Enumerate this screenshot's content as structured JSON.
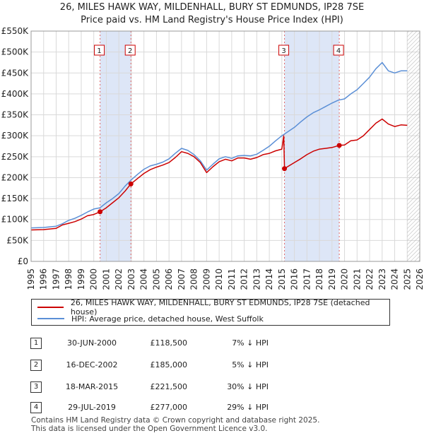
{
  "title": "26, MILES HAWK WAY, MILDENHALL, BURY ST EDMUNDS, IP28 7SE",
  "subtitle": "Price paid vs. HM Land Registry's House Price Index (HPI)",
  "colors": {
    "property": "#cc0000",
    "hpi": "#5b8fd6",
    "shade": "#dde6f7",
    "grid": "#d9d9d9",
    "marker_line": "#e06666"
  },
  "legend": {
    "property": "26, MILES HAWK WAY, MILDENHALL, BURY ST EDMUNDS, IP28 7SE (detached house)",
    "hpi": "HPI: Average price, detached house, West Suffolk"
  },
  "sales": [
    {
      "n": "1",
      "date": "30-JUN-2000",
      "price": "£118,500",
      "hpi": "7% ↓ HPI"
    },
    {
      "n": "2",
      "date": "16-DEC-2002",
      "price": "£185,000",
      "hpi": "5% ↓ HPI"
    },
    {
      "n": "3",
      "date": "18-MAR-2015",
      "price": "£221,500",
      "hpi": "30% ↓ HPI"
    },
    {
      "n": "4",
      "date": "29-JUL-2019",
      "price": "£277,000",
      "hpi": "29% ↓ HPI"
    }
  ],
  "footer": [
    "Contains HM Land Registry data © Crown copyright and database right 2025.",
    "This data is licensed under the Open Government Licence v3.0."
  ],
  "chart_data": {
    "type": "line",
    "title": "26, MILES HAWK WAY, MILDENHALL, BURY ST EDMUNDS, IP28 7SE",
    "subtitle": "Price paid vs. HM Land Registry's House Price Index (HPI)",
    "xlabel": "",
    "ylabel": "",
    "xlim": [
      1995,
      2026
    ],
    "ylim": [
      0,
      550000
    ],
    "xticks": [
      1995,
      1996,
      1997,
      1998,
      1999,
      2000,
      2001,
      2002,
      2003,
      2004,
      2005,
      2006,
      2007,
      2008,
      2009,
      2010,
      2011,
      2012,
      2013,
      2014,
      2015,
      2016,
      2017,
      2018,
      2019,
      2020,
      2021,
      2022,
      2023,
      2024,
      2025,
      2026
    ],
    "yticks": [
      {
        "v": 0,
        "label": "£0"
      },
      {
        "v": 50000,
        "label": "£50K"
      },
      {
        "v": 100000,
        "label": "£100K"
      },
      {
        "v": 150000,
        "label": "£150K"
      },
      {
        "v": 200000,
        "label": "£200K"
      },
      {
        "v": 250000,
        "label": "£250K"
      },
      {
        "v": 300000,
        "label": "£300K"
      },
      {
        "v": 350000,
        "label": "£350K"
      },
      {
        "v": 400000,
        "label": "£400K"
      },
      {
        "v": 450000,
        "label": "£450K"
      },
      {
        "v": 500000,
        "label": "£500K"
      },
      {
        "v": 550000,
        "label": "£550K"
      }
    ],
    "grid": true,
    "legend_position": "below-chart",
    "shaded_periods": [
      [
        2000.5,
        2002.96
      ],
      [
        2015.21,
        2019.58
      ]
    ],
    "hatched_from": 2025.0,
    "series": [
      {
        "name": "26, MILES HAWK WAY, MILDENHALL, BURY ST EDMUNDS, IP28 7SE (detached house)",
        "color": "#cc0000",
        "x": [
          1995.0,
          1996.0,
          1997.0,
          1997.5,
          1998.0,
          1998.5,
          1999.0,
          1999.5,
          2000.0,
          2000.5,
          2001.0,
          2001.5,
          2002.0,
          2002.5,
          2002.96,
          2003.5,
          2004.0,
          2004.5,
          2005.0,
          2005.5,
          2006.0,
          2006.5,
          2007.0,
          2007.5,
          2008.0,
          2008.5,
          2009.0,
          2009.5,
          2010.0,
          2010.5,
          2011.0,
          2011.5,
          2012.0,
          2012.5,
          2013.0,
          2013.5,
          2014.0,
          2014.5,
          2015.0,
          2015.15,
          2015.21,
          2015.5,
          2016.0,
          2016.5,
          2017.0,
          2017.5,
          2018.0,
          2018.5,
          2019.0,
          2019.58,
          2020.0,
          2020.5,
          2021.0,
          2021.5,
          2022.0,
          2022.5,
          2023.0,
          2023.5,
          2024.0,
          2024.5,
          2025.0
        ],
        "y": [
          75000,
          76000,
          79000,
          87000,
          91000,
          95000,
          101000,
          109000,
          112000,
          118500,
          128000,
          140000,
          152000,
          168000,
          185000,
          198000,
          210000,
          219000,
          225000,
          230000,
          236000,
          248000,
          262000,
          258000,
          250000,
          236000,
          212000,
          226000,
          238000,
          244000,
          240000,
          247000,
          247000,
          244000,
          248000,
          255000,
          258000,
          264000,
          268000,
          300000,
          221500,
          227000,
          236000,
          245000,
          255000,
          263000,
          268000,
          270000,
          272000,
          277000,
          278000,
          288000,
          290000,
          300000,
          315000,
          330000,
          340000,
          328000,
          322000,
          326000,
          325000
        ]
      },
      {
        "name": "HPI: Average price, detached house, West Suffolk",
        "color": "#5b8fd6",
        "x": [
          1995.0,
          1996.0,
          1997.0,
          1997.5,
          1998.0,
          1998.5,
          1999.0,
          1999.5,
          2000.0,
          2000.5,
          2001.0,
          2001.5,
          2002.0,
          2002.5,
          2003.0,
          2003.5,
          2004.0,
          2004.5,
          2005.0,
          2005.5,
          2006.0,
          2006.5,
          2007.0,
          2007.5,
          2008.0,
          2008.5,
          2009.0,
          2009.5,
          2010.0,
          2010.5,
          2011.0,
          2011.5,
          2012.0,
          2012.5,
          2013.0,
          2013.5,
          2014.0,
          2014.5,
          2015.0,
          2015.5,
          2016.0,
          2016.5,
          2017.0,
          2017.5,
          2018.0,
          2018.5,
          2019.0,
          2019.5,
          2020.0,
          2020.5,
          2021.0,
          2021.5,
          2022.0,
          2022.5,
          2023.0,
          2023.5,
          2024.0,
          2024.5,
          2025.0
        ],
        "y": [
          80000,
          81000,
          84000,
          90000,
          98000,
          103000,
          110000,
          118000,
          125000,
          128000,
          140000,
          150000,
          162000,
          180000,
          195000,
          208000,
          220000,
          228000,
          232000,
          237000,
          245000,
          258000,
          270000,
          265000,
          255000,
          240000,
          218000,
          232000,
          245000,
          250000,
          246000,
          252000,
          253000,
          252000,
          256000,
          265000,
          275000,
          288000,
          300000,
          310000,
          320000,
          333000,
          345000,
          355000,
          362000,
          370000,
          378000,
          385000,
          388000,
          400000,
          410000,
          425000,
          440000,
          460000,
          475000,
          455000,
          450000,
          455000,
          455000
        ]
      }
    ],
    "sales": [
      {
        "label": "1",
        "x": 2000.5,
        "y": 118500
      },
      {
        "label": "2",
        "x": 2002.96,
        "y": 185000
      },
      {
        "label": "3",
        "x": 2015.21,
        "y": 221500
      },
      {
        "label": "4",
        "x": 2019.58,
        "y": 277000
      }
    ]
  }
}
